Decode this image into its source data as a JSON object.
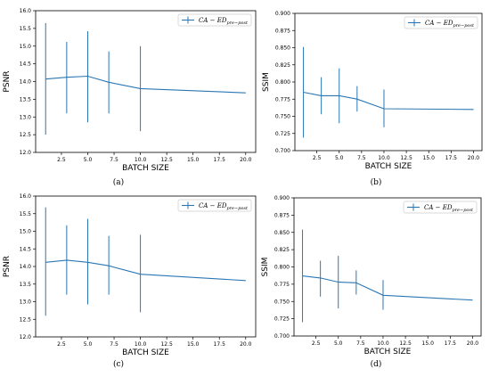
{
  "colors": {
    "series": "#2a77b4",
    "axis": "#000000",
    "legend_border": "#cccccc"
  },
  "chart_data": [
    {
      "type": "line",
      "caption": "(a)",
      "xlabel": "BATCH SIZE",
      "ylabel": "PSNR",
      "xlim": [
        0.05,
        20.95
      ],
      "ylim": [
        12.0,
        16.0
      ],
      "xticks": [
        "2.5",
        "5.0",
        "7.5",
        "10.0",
        "12.5",
        "15.0",
        "17.5",
        "20.0"
      ],
      "xtick_values": [
        2.5,
        5.0,
        7.5,
        10.0,
        12.5,
        15.0,
        17.5,
        20.0
      ],
      "yticks": [
        "12.0",
        "12.5",
        "13.0",
        "13.5",
        "14.0",
        "14.5",
        "15.0",
        "15.5",
        "16.0"
      ],
      "ytick_values": [
        12.0,
        12.5,
        13.0,
        13.5,
        14.0,
        14.5,
        15.0,
        15.5,
        16.0
      ],
      "legend_position": "top-right",
      "series": [
        {
          "name_main": "CA − ED",
          "name_sub": "pre−post",
          "x": [
            1,
            3,
            5,
            7,
            10,
            20
          ],
          "y": [
            14.07,
            14.12,
            14.15,
            13.98,
            13.8,
            13.68
          ],
          "err_low": [
            12.5,
            13.1,
            12.85,
            13.1,
            12.6,
            null
          ],
          "err_high": [
            15.65,
            15.12,
            15.42,
            14.85,
            15.0,
            null
          ]
        }
      ]
    },
    {
      "type": "line",
      "caption": "(b)",
      "xlabel": "BATCH SIZE",
      "ylabel": "SSIM",
      "xlim": [
        0.05,
        20.95
      ],
      "ylim": [
        0.7,
        0.9
      ],
      "xticks": [
        "2.5",
        "5.0",
        "7.5",
        "10.0",
        "12.5",
        "15.0",
        "17.5",
        "20.0"
      ],
      "xtick_values": [
        2.5,
        5.0,
        7.5,
        10.0,
        12.5,
        15.0,
        17.5,
        20.0
      ],
      "yticks": [
        "0.700",
        "0.725",
        "0.750",
        "0.775",
        "0.800",
        "0.825",
        "0.850",
        "0.875",
        "0.900"
      ],
      "ytick_values": [
        0.7,
        0.725,
        0.75,
        0.775,
        0.8,
        0.825,
        0.85,
        0.875,
        0.9
      ],
      "legend_position": "top-right",
      "series": [
        {
          "name_main": "CA − ED",
          "name_sub": "pre−post",
          "x": [
            1,
            3,
            5,
            7,
            10,
            20
          ],
          "y": [
            0.785,
            0.78,
            0.78,
            0.775,
            0.761,
            0.76
          ],
          "err_low": [
            0.719,
            0.753,
            0.74,
            0.757,
            0.734,
            null
          ],
          "err_high": [
            0.851,
            0.807,
            0.82,
            0.794,
            0.789,
            null
          ]
        }
      ]
    },
    {
      "type": "line",
      "caption": "(c)",
      "xlabel": "BATCH SIZE",
      "ylabel": "PSNR",
      "xlim": [
        0.05,
        20.95
      ],
      "ylim": [
        12.0,
        16.0
      ],
      "xticks": [
        "2.5",
        "5.0",
        "7.5",
        "10.0",
        "12.5",
        "15.0",
        "17.5",
        "20.0"
      ],
      "xtick_values": [
        2.5,
        5.0,
        7.5,
        10.0,
        12.5,
        15.0,
        17.5,
        20.0
      ],
      "yticks": [
        "12.0",
        "12.5",
        "13.0",
        "13.5",
        "14.0",
        "14.5",
        "15.0",
        "15.5",
        "16.0"
      ],
      "ytick_values": [
        12.0,
        12.5,
        13.0,
        13.5,
        14.0,
        14.5,
        15.0,
        15.5,
        16.0
      ],
      "legend_position": "top-right",
      "series": [
        {
          "name_main": "CA − ED",
          "name_sub": "pre−post",
          "x": [
            1,
            3,
            5,
            7,
            10,
            20
          ],
          "y": [
            14.12,
            14.18,
            14.12,
            14.02,
            13.78,
            13.6
          ],
          "err_low": [
            12.6,
            13.2,
            12.92,
            13.2,
            12.7,
            null
          ],
          "err_high": [
            15.68,
            15.17,
            15.35,
            14.87,
            14.9,
            null
          ]
        }
      ]
    },
    {
      "type": "line",
      "caption": "(d)",
      "xlabel": "BATCH SIZE",
      "ylabel": "SSIM",
      "xlim": [
        0.05,
        20.95
      ],
      "ylim": [
        0.7,
        0.9
      ],
      "xticks": [
        "2.5",
        "5.0",
        "7.5",
        "10.0",
        "12.5",
        "15.0",
        "17.5",
        "20.0"
      ],
      "xtick_values": [
        2.5,
        5.0,
        7.5,
        10.0,
        12.5,
        15.0,
        17.5,
        20.0
      ],
      "yticks": [
        "0.700",
        "0.725",
        "0.750",
        "0.775",
        "0.800",
        "0.825",
        "0.850",
        "0.875",
        "0.900"
      ],
      "ytick_values": [
        0.7,
        0.725,
        0.75,
        0.775,
        0.8,
        0.825,
        0.85,
        0.875,
        0.9
      ],
      "legend_position": "top-right",
      "series": [
        {
          "name_main": "CA − ED",
          "name_sub": "pre−post",
          "x": [
            1,
            3,
            5,
            7,
            10,
            20
          ],
          "y": [
            0.787,
            0.784,
            0.778,
            0.777,
            0.759,
            0.752
          ],
          "err_low": [
            0.72,
            0.757,
            0.74,
            0.76,
            0.738,
            null
          ],
          "err_high": [
            0.854,
            0.809,
            0.816,
            0.795,
            0.781,
            null
          ]
        }
      ]
    }
  ]
}
